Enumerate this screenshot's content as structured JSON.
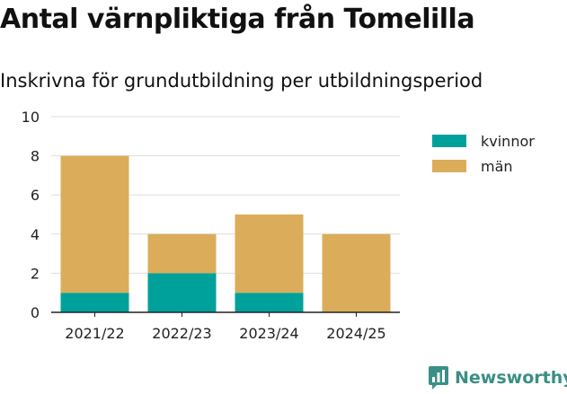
{
  "chart_data": {
    "type": "bar",
    "stacked": true,
    "title": "Antal värnpliktiga från Tomelilla",
    "subtitle": "Inskrivna för grundutbildning per utbildningsperiod",
    "categories": [
      "2021/22",
      "2022/23",
      "2023/24",
      "2024/25"
    ],
    "series": [
      {
        "name": "kvinnor",
        "color": "#00a19a",
        "values": [
          1,
          2,
          1,
          0
        ]
      },
      {
        "name": "män",
        "color": "#dbad5a",
        "values": [
          7,
          2,
          4,
          4
        ]
      }
    ],
    "ylim": [
      0,
      10
    ],
    "yticks": [
      "0",
      "2",
      "4",
      "6",
      "8",
      "10"
    ],
    "grid": true,
    "legend_position": "right"
  },
  "brand": {
    "name": "Newsworthy",
    "color": "#3a8f86",
    "icon": "bar-chart-bubble-icon"
  }
}
